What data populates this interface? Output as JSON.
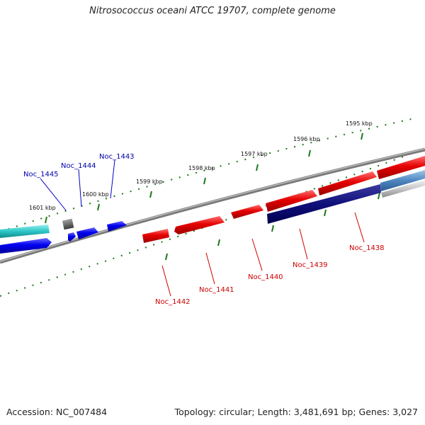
{
  "title": "Nitrosococcus oceani ATCC 19707, complete genome",
  "footer": {
    "accession": "Accession: NC_007484",
    "summary": "Topology: circular; Length: 3,481,691 bp; Genes: 3,027"
  },
  "colors": {
    "forward_gene": "#e50000",
    "reverse_gene": "#0000ee",
    "forward_label": "#cc0000",
    "reverse_label": "#0000aa",
    "tick": "#1a7a1a",
    "backbone": "#808080"
  },
  "scale_labels": [
    "1595 kbp",
    "1596 kbp",
    "1597 kbp",
    "1598 kbp",
    "1599 kbp",
    "1600 kbp",
    "1601 kbp"
  ],
  "genes": {
    "forward": [
      "Noc_1438",
      "Noc_1439",
      "Noc_1440",
      "Noc_1441",
      "Noc_1442"
    ],
    "reverse": [
      "Noc_1443",
      "Noc_1444",
      "Noc_1445"
    ]
  }
}
